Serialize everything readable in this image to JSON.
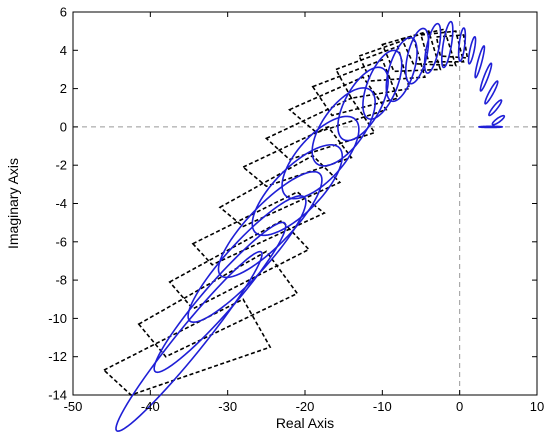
{
  "chart_data": {
    "type": "scatter",
    "title": "",
    "xlabel": "Real Axis",
    "ylabel": "Imaginary Axis",
    "xlim": [
      -50,
      10
    ],
    "ylim": [
      -14,
      6
    ],
    "xticks": [
      -50,
      -40,
      -30,
      -20,
      -10,
      0,
      10
    ],
    "yticks": [
      -14,
      -12,
      -10,
      -8,
      -6,
      -4,
      -2,
      0,
      2,
      4,
      6
    ],
    "grid": false,
    "zero_lines": true,
    "colors": {
      "ellipse": "#1f1fd6",
      "box": "#000000",
      "zero_line": "#999999"
    },
    "series": [
      {
        "type": "ellipse",
        "values": [
          {
            "cx": -35.0,
            "cy": -11.2,
            "rx": 10.5,
            "ry": 1.0,
            "angle": 26
          },
          {
            "cx": -31.0,
            "cy": -8.9,
            "rx": 9.3,
            "ry": 1.1,
            "angle": 24
          },
          {
            "cx": -27.5,
            "cy": -6.9,
            "rx": 8.2,
            "ry": 1.3,
            "angle": 22
          },
          {
            "cx": -24.5,
            "cy": -5.1,
            "rx": 7.1,
            "ry": 1.4,
            "angle": 20
          },
          {
            "cx": -21.0,
            "cy": -3.3,
            "rx": 6.1,
            "ry": 1.5,
            "angle": 18
          },
          {
            "cx": -18.0,
            "cy": -1.6,
            "rx": 5.2,
            "ry": 1.5,
            "angle": 18
          },
          {
            "cx": -15.0,
            "cy": 0.0,
            "rx": 4.3,
            "ry": 1.5,
            "angle": 20
          },
          {
            "cx": -12.5,
            "cy": 1.2,
            "rx": 3.5,
            "ry": 1.4,
            "angle": 24
          },
          {
            "cx": -10.0,
            "cy": 2.2,
            "rx": 2.8,
            "ry": 1.3,
            "angle": 30
          },
          {
            "cx": -7.5,
            "cy": 3.0,
            "rx": 2.3,
            "ry": 1.2,
            "angle": 36
          },
          {
            "cx": -5.5,
            "cy": 3.7,
            "rx": 1.8,
            "ry": 1.0,
            "angle": 44
          },
          {
            "cx": -3.5,
            "cy": 4.1,
            "rx": 1.5,
            "ry": 0.7,
            "angle": 55
          },
          {
            "cx": -1.6,
            "cy": 4.3,
            "rx": 1.3,
            "ry": 0.5,
            "angle": 65
          },
          {
            "cx": 0.3,
            "cy": 4.3,
            "rx": 0.9,
            "ry": 0.35,
            "angle": 72
          },
          {
            "cx": 1.6,
            "cy": 4.0,
            "rx": 0.8,
            "ry": 0.25,
            "angle": 60
          },
          {
            "cx": 2.6,
            "cy": 3.4,
            "rx": 1.0,
            "ry": 0.22,
            "angle": 55
          },
          {
            "cx": 3.4,
            "cy": 2.6,
            "rx": 1.0,
            "ry": 0.2,
            "angle": 45
          },
          {
            "cx": 4.1,
            "cy": 1.8,
            "rx": 1.0,
            "ry": 0.18,
            "angle": 35
          },
          {
            "cx": 4.6,
            "cy": 1.0,
            "rx": 0.9,
            "ry": 0.15,
            "angle": 25
          },
          {
            "cx": 5.0,
            "cy": 0.35,
            "rx": 0.8,
            "ry": 0.12,
            "angle": 15
          },
          {
            "cx": 4.0,
            "cy": 0.0,
            "rx": 1.5,
            "ry": 0.03,
            "angle": 0
          }
        ]
      },
      {
        "type": "polygon",
        "values": [
          [
            [
              -46.0,
              -12.7
            ],
            [
              -28.0,
              -9.0
            ],
            [
              -24.5,
              -11.5
            ],
            [
              -42.5,
              -14.0
            ]
          ],
          [
            [
              -41.5,
              -10.3
            ],
            [
              -25.0,
              -6.5
            ],
            [
              -21.0,
              -8.7
            ],
            [
              -38.0,
              -12.0
            ]
          ],
          [
            [
              -37.5,
              -8.1
            ],
            [
              -23.0,
              -4.9
            ],
            [
              -19.5,
              -6.4
            ],
            [
              -34.5,
              -9.5
            ]
          ],
          [
            [
              -34.5,
              -6.1
            ],
            [
              -21.0,
              -3.4
            ],
            [
              -17.5,
              -4.5
            ],
            [
              -32.0,
              -7.2
            ]
          ],
          [
            [
              -31.0,
              -4.2
            ],
            [
              -19.0,
              -1.5
            ],
            [
              -15.5,
              -2.9
            ],
            [
              -28.0,
              -5.2
            ]
          ],
          [
            [
              -28.0,
              -2.1
            ],
            [
              -17.0,
              0.0
            ],
            [
              -14.0,
              -1.6
            ],
            [
              -25.0,
              -3.1
            ]
          ],
          [
            [
              -25.0,
              -0.6
            ],
            [
              -14.0,
              1.5
            ],
            [
              -11.0,
              -0.3
            ],
            [
              -22.0,
              -1.7
            ]
          ],
          [
            [
              -22.0,
              0.9
            ],
            [
              -12.5,
              2.6
            ],
            [
              -9.5,
              0.9
            ],
            [
              -18.5,
              -0.3
            ]
          ],
          [
            [
              -19.0,
              2.1
            ],
            [
              -10.0,
              3.5
            ],
            [
              -8.0,
              1.5
            ],
            [
              -16.5,
              0.6
            ]
          ],
          [
            [
              -16.0,
              3.0
            ],
            [
              -8.0,
              4.2
            ],
            [
              -6.5,
              2.0
            ],
            [
              -14.0,
              1.5
            ]
          ],
          [
            [
              -13.0,
              3.7
            ],
            [
              -6.0,
              4.7
            ],
            [
              -4.5,
              2.6
            ],
            [
              -11.5,
              2.4
            ]
          ],
          [
            [
              -10.0,
              4.3
            ],
            [
              -4.0,
              5.0
            ],
            [
              -2.5,
              3.0
            ],
            [
              -8.5,
              2.9
            ]
          ],
          [
            [
              -7.5,
              4.6
            ],
            [
              -2.0,
              5.1
            ],
            [
              -0.5,
              3.2
            ],
            [
              -6.0,
              3.3
            ]
          ],
          [
            [
              -5.0,
              4.8
            ],
            [
              -0.5,
              5.0
            ],
            [
              0.5,
              3.4
            ],
            [
              -4.0,
              3.4
            ]
          ],
          [
            [
              -3.0,
              4.7
            ],
            [
              0.5,
              4.8
            ],
            [
              1.0,
              3.6
            ],
            [
              -2.5,
              3.7
            ]
          ]
        ]
      }
    ]
  }
}
